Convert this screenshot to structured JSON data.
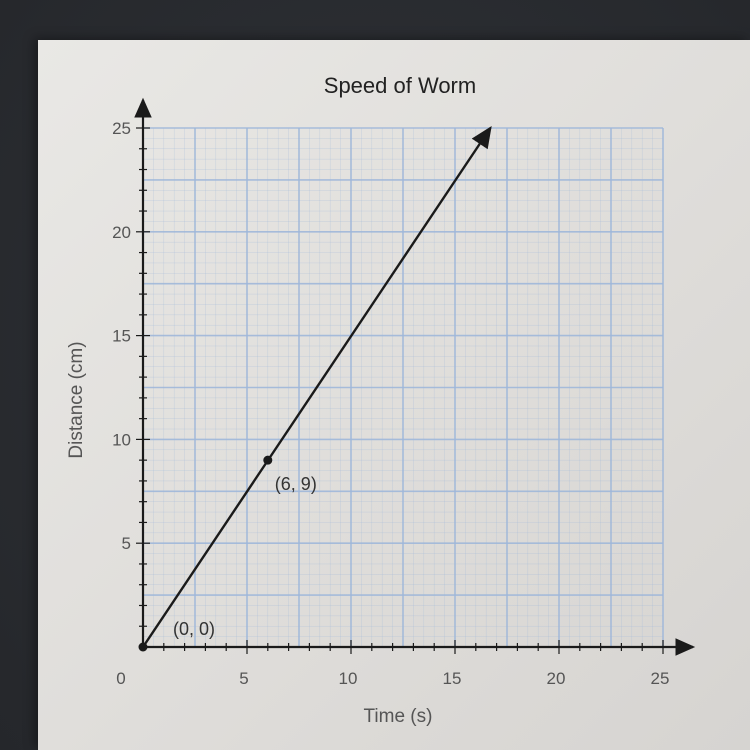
{
  "chart_data": {
    "type": "line",
    "title": "Speed of Worm",
    "xlabel": "Time (s)",
    "ylabel": "Distance (cm)",
    "xlim": [
      0,
      25
    ],
    "ylim": [
      0,
      25
    ],
    "x_ticks": [
      "0",
      "5",
      "10",
      "15",
      "20",
      "25"
    ],
    "y_ticks": [
      "5",
      "10",
      "15",
      "20",
      "25"
    ],
    "grid": true,
    "series": [
      {
        "x": [
          0,
          16.7
        ],
        "y": [
          0,
          25
        ],
        "arrow_end": true
      }
    ],
    "points": [
      {
        "x": 0,
        "y": 0,
        "label": "(0, 0)"
      },
      {
        "x": 6,
        "y": 9,
        "label": "(6, 9)"
      }
    ],
    "colors": {
      "line": "#1a1a1a",
      "grid": "#9fb7d9",
      "axis": "#1a1a1a"
    }
  }
}
